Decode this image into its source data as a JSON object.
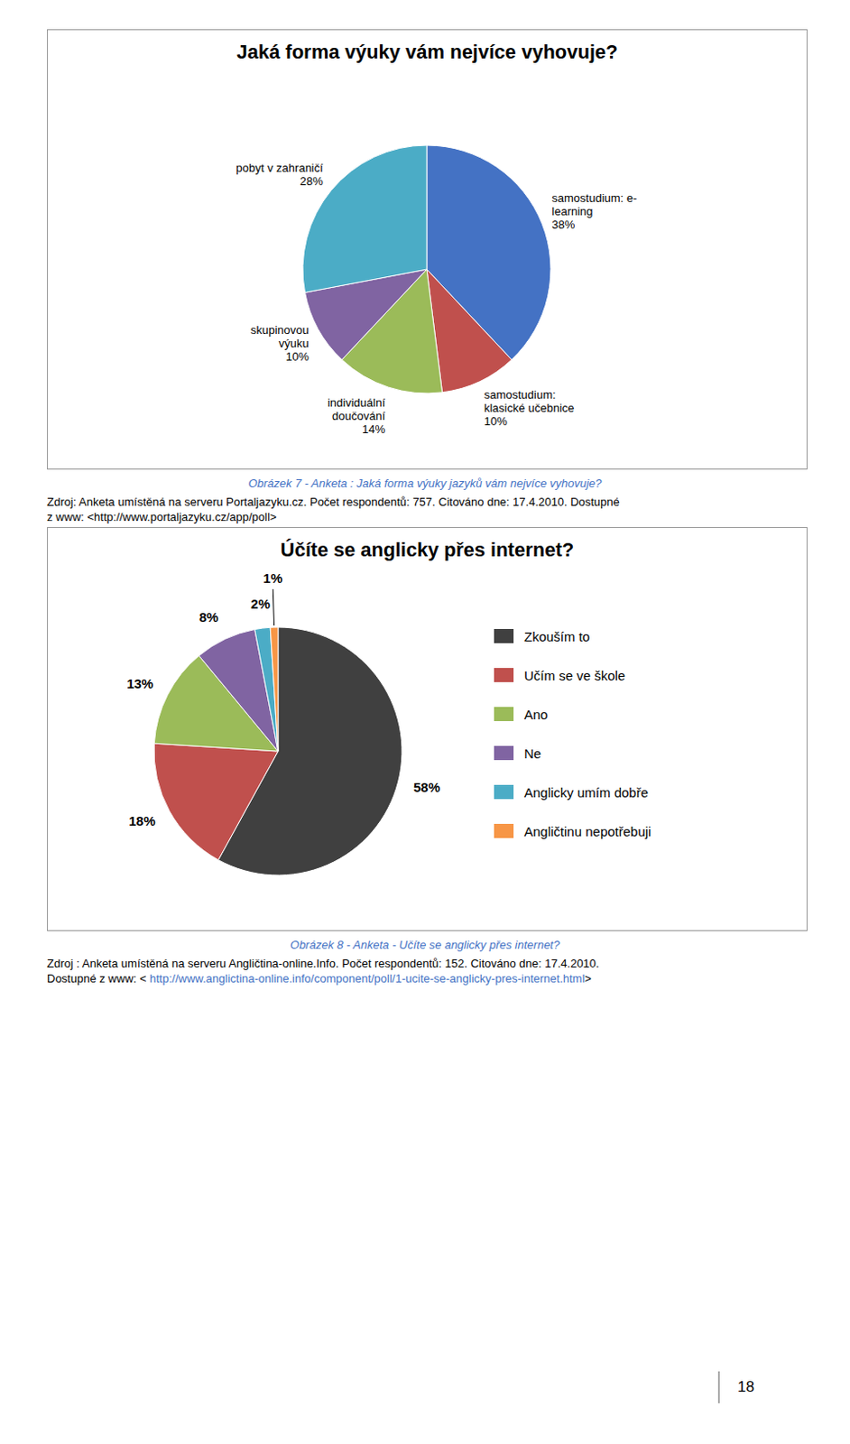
{
  "chart_data": [
    {
      "type": "pie",
      "title": "Jaká forma výuky vám nejvíce vyhovuje?",
      "categories": [
        "samostudium: e-\nlearning",
        "samostudium:\nklasické učebnice",
        "individuální\ndoučování",
        "skupinovou\nvýuku",
        "pobyt v zahraničí"
      ],
      "values": [
        38,
        10,
        14,
        10,
        28
      ],
      "value_labels": [
        "38%",
        "10%",
        "14%",
        "10%",
        "28%"
      ],
      "data_labels": true,
      "colors": [
        "#4472C4",
        "#C0504D",
        "#9BBB59",
        "#8064A2",
        "#4BACC6"
      ],
      "annotations": [
        "Obrázek 7 - Anketa : Jaká forma výuky jazyků vám nejvíce vyhovuje?",
        "Zdroj: Anketa umístěná na serveru Portaljazyku.cz. Počet respondentů: 757. Citováno dne: 17.4.2010. Dostupné\nz www: <http://www.portaljazyku.cz/app/poll>"
      ]
    },
    {
      "type": "pie",
      "title": "Účíte se anglicky přes internet?",
      "categories": [
        "Zkouším to",
        "Učím se ve škole",
        "Ano",
        "Ne",
        "Anglicky umím dobře",
        "Angličtinu nepotřebuji"
      ],
      "values": [
        58,
        18,
        13,
        8,
        2,
        1
      ],
      "value_labels": [
        "58%",
        "18%",
        "13%",
        "8%",
        "2%",
        "1%"
      ],
      "data_labels": true,
      "legend": "right",
      "colors": [
        "#404040",
        "#C0504D",
        "#9BBB59",
        "#8064A2",
        "#4BACC6",
        "#F79646"
      ],
      "annotations": [
        "Obrázek 8 - Anketa - Učíte se anglicky přes internet?",
        "Zdroj : Anketa umístěná na serveru Angličtina-online.Info. Počet respondentů: 152. Citováno dne: 17.4.2010.",
        "Dostupné z www: < ",
        "http://www.anglictina-online.info/component/poll/1-ucite-se-anglicky-pres-internet.html",
        ">"
      ]
    }
  ],
  "page_number": "18"
}
